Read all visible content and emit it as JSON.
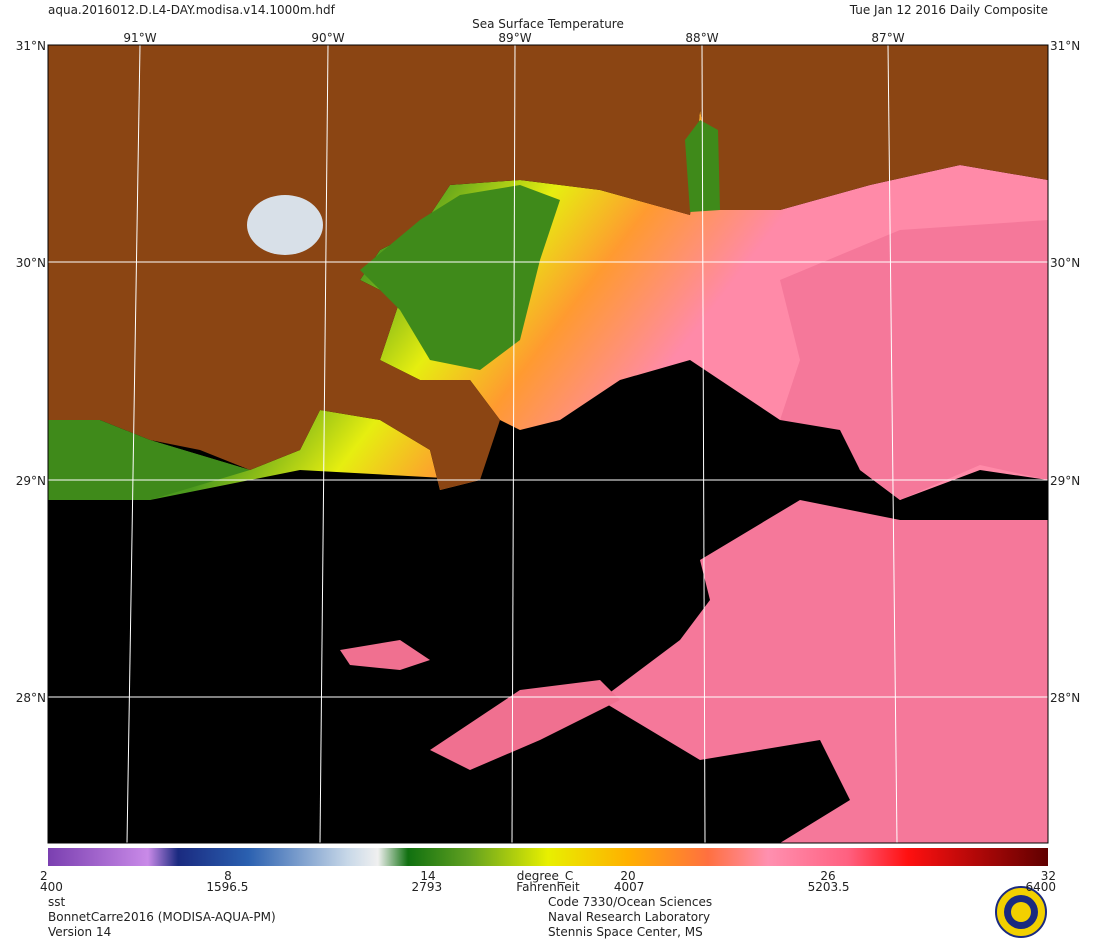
{
  "header": {
    "file": "aqua.2016012.D.L4-DAY.modisa.v14.1000m.hdf",
    "title": "Sea Surface Temperature",
    "date": "Tue Jan 12 2016 Daily Composite"
  },
  "map": {
    "lon_labels": [
      "91°W",
      "90°W",
      "89°W",
      "88°W",
      "87°W"
    ],
    "lat_labels": [
      "31°N",
      "30°N",
      "29°N",
      "28°N"
    ]
  },
  "colorbar": {
    "celsius_ticks": [
      2,
      8,
      14,
      20,
      26,
      32
    ],
    "celsius_lim": [
      2,
      32
    ],
    "celsius_unit": "degree_C",
    "fahrenheit_ticks": [
      400,
      1596.5,
      2793,
      4007,
      5203.5,
      6400
    ],
    "fahrenheit_lim": [
      400,
      6400
    ],
    "fahrenheit_unit": "Fahrenheit"
  },
  "footer": {
    "left": [
      "sst",
      "BonnetCarre2016 (MODISA-AQUA-PM)",
      "Version 14"
    ],
    "center": [
      "Code 7330/Ocean Sciences",
      "Naval Research Laboratory",
      "Stennis Space Center, MS"
    ]
  }
}
